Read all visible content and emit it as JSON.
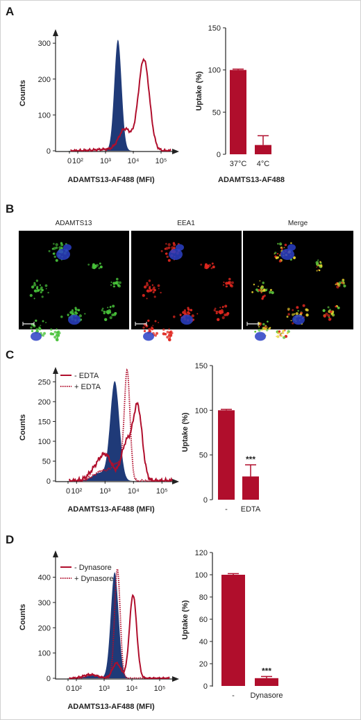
{
  "colors": {
    "filled": "#1f3a78",
    "line": "#b00e2c",
    "bar": "#b00e2c",
    "border": "#cfcfcf"
  },
  "panels": {
    "a": {
      "letter": "A",
      "histogram": {
        "xlabel": "ADAMTS13-AF488 (MFI)",
        "ylabel": "Counts",
        "yticks": [
          "0",
          "100",
          "200",
          "300"
        ],
        "xticks": [
          "0",
          "10²",
          "10³",
          "10⁴",
          "10⁵"
        ]
      },
      "bar": {
        "ylabel": "Uptake (%)",
        "xlabel": "ADAMTS13-AF488",
        "yticks": [
          "0",
          "50",
          "100",
          "150"
        ],
        "categories": [
          "37°C",
          "4°C"
        ]
      }
    },
    "b": {
      "letter": "B",
      "labels": [
        "ADAMTS13",
        "EEA1",
        "Merge"
      ],
      "image_alt": "confocal microscopy images"
    },
    "c": {
      "letter": "C",
      "histogram": {
        "xlabel": "ADAMTS13-AF488 (MFI)",
        "ylabel": "Counts",
        "yticks": [
          "0",
          "50",
          "100",
          "150",
          "200",
          "250"
        ],
        "xticks": [
          "0",
          "10²",
          "10³",
          "10⁴",
          "10⁵"
        ],
        "legend": [
          "- EDTA",
          "+ EDTA"
        ]
      },
      "bar": {
        "ylabel": "Uptake (%)",
        "yticks": [
          "0",
          "50",
          "100",
          "150"
        ],
        "categories": [
          "-",
          "EDTA"
        ],
        "annotation": "***"
      }
    },
    "d": {
      "letter": "D",
      "histogram": {
        "xlabel": "ADAMTS13-AF488 (MFI)",
        "ylabel": "Counts",
        "yticks": [
          "0",
          "100",
          "200",
          "300",
          "400"
        ],
        "xticks": [
          "0",
          "10²",
          "10³",
          "10⁴",
          "10⁵"
        ],
        "legend": [
          "- Dynasore",
          "+ Dynasore"
        ]
      },
      "bar": {
        "ylabel": "Uptake (%)",
        "yticks": [
          "0",
          "20",
          "40",
          "60",
          "80",
          "100",
          "120"
        ],
        "categories": [
          "-",
          "Dynasore"
        ],
        "annotation": "***"
      }
    }
  },
  "chart_data": [
    {
      "type": "area",
      "panel": "A-histogram",
      "xscale": "log",
      "xticks": [
        "0",
        "10²",
        "10³",
        "10⁴",
        "10⁵"
      ],
      "ylim": [
        0,
        310
      ],
      "series": [
        {
          "style": "filled",
          "peak_x": 2800,
          "peak_y": 310
        },
        {
          "style": "line",
          "peak_x": 24000,
          "peak_y": 260
        }
      ],
      "xlabel": "ADAMTS13-AF488 (MFI)",
      "ylabel": "Counts"
    },
    {
      "type": "bar",
      "panel": "A-bar",
      "categories": [
        "37°C",
        "4°C"
      ],
      "values": [
        100,
        11
      ],
      "errors": [
        1,
        11
      ],
      "ylim": [
        0,
        150
      ],
      "ylabel": "Uptake (%)",
      "xlabel": "ADAMTS13-AF488"
    },
    {
      "type": "area",
      "panel": "C-histogram",
      "xscale": "log",
      "xticks": [
        "0",
        "10²",
        "10³",
        "10⁴",
        "10⁵"
      ],
      "ylim": [
        0,
        270
      ],
      "series": [
        {
          "style": "filled",
          "peak_x": 2200,
          "peak_y": 250
        },
        {
          "name": "- EDTA",
          "style": "solid",
          "peak_x": 14000,
          "peak_y": 195
        },
        {
          "name": "+ EDTA",
          "style": "dotted",
          "peak_x": 6000,
          "peak_y": 270
        }
      ],
      "xlabel": "ADAMTS13-AF488 (MFI)",
      "ylabel": "Counts",
      "legend": "top-left"
    },
    {
      "type": "bar",
      "panel": "C-bar",
      "categories": [
        "-",
        "EDTA"
      ],
      "values": [
        100,
        26
      ],
      "errors": [
        1,
        13
      ],
      "ylim": [
        0,
        150
      ],
      "ylabel": "Uptake (%)",
      "annotations": [
        "",
        "***"
      ]
    },
    {
      "type": "area",
      "panel": "D-histogram",
      "xscale": "log",
      "xticks": [
        "0",
        "10²",
        "10³",
        "10⁴",
        "10⁵"
      ],
      "ylim": [
        0,
        440
      ],
      "series": [
        {
          "style": "filled",
          "peak_x": 2400,
          "peak_y": 420
        },
        {
          "name": "- Dynasore",
          "style": "solid",
          "peak_x": 11000,
          "peak_y": 335
        },
        {
          "name": "+ Dynasore",
          "style": "dotted",
          "peak_x": 3000,
          "peak_y": 435
        }
      ],
      "xlabel": "ADAMTS13-AF488 (MFI)",
      "ylabel": "Counts",
      "legend": "top-left"
    },
    {
      "type": "bar",
      "panel": "D-bar",
      "categories": [
        "-",
        "Dynasore"
      ],
      "values": [
        100,
        7
      ],
      "errors": [
        1,
        1.5
      ],
      "ylim": [
        0,
        120
      ],
      "ylabel": "Uptake (%)",
      "annotations": [
        "",
        "***"
      ]
    }
  ]
}
